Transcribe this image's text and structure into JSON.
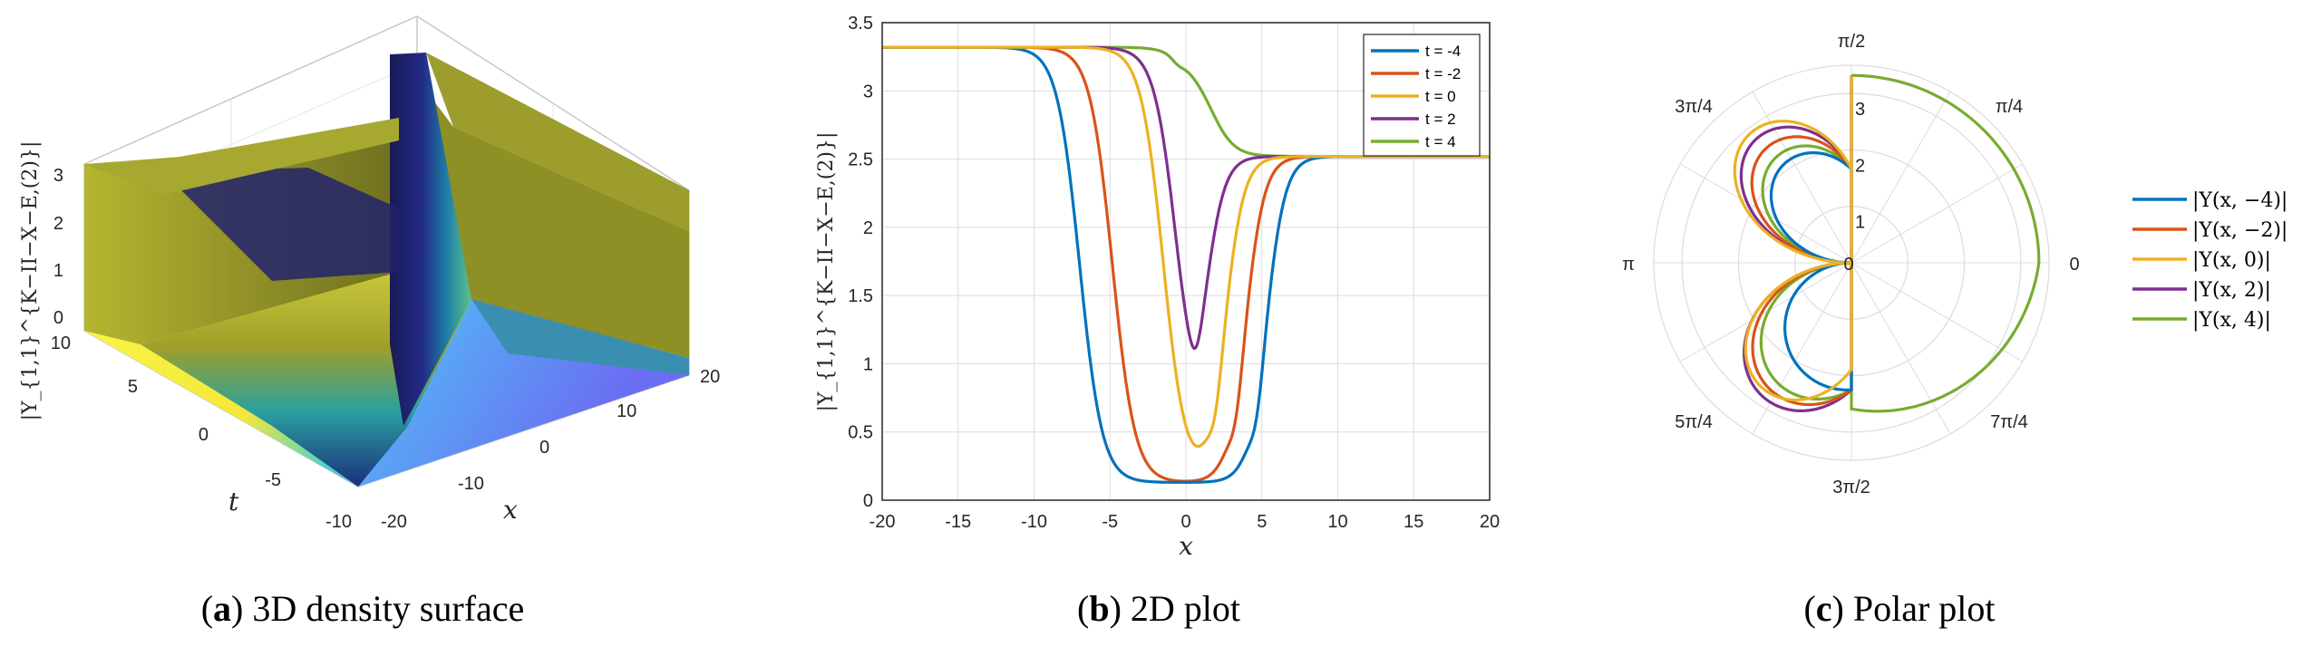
{
  "colors": {
    "blue": "#0072BD",
    "orange": "#D95319",
    "yellow": "#EDB120",
    "purple": "#7E2F8E",
    "green": "#77AC30",
    "grid": "#dcdcdc"
  },
  "captions": {
    "a": {
      "letter": "a",
      "text": "3D density surface"
    },
    "b": {
      "letter": "b",
      "text": "2D plot"
    },
    "c": {
      "letter": "c",
      "text": "Polar plot"
    }
  },
  "chart_data": [
    {
      "type": "surface",
      "panel": "a",
      "zlabel": "|Υ_{1,1}^{K−II−X−E,(2)}|",
      "xlabel": "x",
      "ylabel": "t",
      "xlim": [
        -20,
        20
      ],
      "ylim": [
        -10,
        10
      ],
      "zlim": [
        0,
        3.3
      ],
      "x_ticks": [
        "-20",
        "-10",
        "0",
        "10",
        "20"
      ],
      "t_ticks": [
        "-10",
        "-5",
        "0",
        "5",
        "10"
      ],
      "z_ticks": [
        "0",
        "1",
        "2",
        "3"
      ],
      "colormap": "parula"
    },
    {
      "type": "line",
      "panel": "b",
      "xlabel": "x",
      "ylabel": "|Υ_{1,1}^{K−II−X−E,(2)}|",
      "xlim": [
        -20,
        20
      ],
      "ylim": [
        0,
        3.5
      ],
      "x_ticks": [
        "-20",
        "-15",
        "-10",
        "-5",
        "0",
        "5",
        "10",
        "15",
        "20"
      ],
      "y_ticks": [
        "0",
        "0.5",
        "1",
        "1.5",
        "2",
        "2.5",
        "3",
        "3.5"
      ],
      "grid": true,
      "legend": "top-right",
      "series": [
        {
          "name": "t = -4",
          "color": "#0072BD",
          "t": -4
        },
        {
          "name": "t = -2",
          "color": "#D95319",
          "t": -2
        },
        {
          "name": "t = 0",
          "color": "#EDB120",
          "t": 0
        },
        {
          "name": "t = 2",
          "color": "#7E2F8E",
          "t": 2
        },
        {
          "name": "t = 4",
          "color": "#77AC30",
          "t": 4
        }
      ],
      "params": {
        "left_level": 3.32,
        "right_level": 2.52,
        "well_level": 0.13,
        "speed": 1.2,
        "drop_offset": -7.0,
        "rise_offset": 5.3
      }
    },
    {
      "type": "polar",
      "panel": "c",
      "rlim": [
        0,
        3.5
      ],
      "r_ticks": [
        "1",
        "2",
        "3"
      ],
      "theta_ticks": [
        "0",
        "π/4",
        "π/2",
        "3π/4",
        "π",
        "5π/4",
        "3π/2",
        "7π/4"
      ],
      "legend": "right",
      "series": [
        {
          "name": "|Υ(x, −4)|",
          "color": "#0072BD"
        },
        {
          "name": "|Υ(x, −2)|",
          "color": "#D95319"
        },
        {
          "name": "|Υ(x, 0)|",
          "color": "#EDB120"
        },
        {
          "name": "|Υ(x, 2)|",
          "color": "#7E2F8E"
        },
        {
          "name": "|Υ(x, 4)|",
          "color": "#77AC30"
        }
      ]
    }
  ]
}
